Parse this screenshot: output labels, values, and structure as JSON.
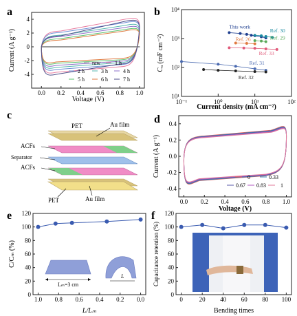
{
  "chart_data": [
    {
      "panel": "a",
      "type": "line",
      "xlabel": "Voltage (V)",
      "ylabel": "Current (A g⁻¹)",
      "xlim": [
        -0.1,
        1.05
      ],
      "ylim": [
        -6,
        5
      ],
      "xticks": [
        "0.0",
        "0.2",
        "0.4",
        "0.6",
        "0.8",
        "1.0"
      ],
      "yticks": [
        "-4",
        "-2",
        "0",
        "2",
        "4"
      ],
      "legend": {
        "placement": "bottom-right",
        "entries": [
          "raw",
          "1 h",
          "2 h",
          "3 h",
          "4 h",
          "5 h",
          "6 h",
          "7 h"
        ]
      },
      "series": [
        {
          "name": "raw",
          "color": "#999999",
          "upper": [
            0.05,
            0.05
          ],
          "lower": [
            -0.05,
            -0.05
          ]
        },
        {
          "name": "1 h",
          "color": "#e87ea1",
          "upper": [
            2.2,
            4.3
          ],
          "lower": [
            -2.8,
            -4.0
          ]
        },
        {
          "name": "2 h",
          "color": "#6f8fd6",
          "upper": [
            2.0,
            3.8
          ],
          "lower": [
            -2.5,
            -3.6
          ]
        },
        {
          "name": "3 h",
          "color": "#57b8b0",
          "upper": [
            1.6,
            3.4
          ],
          "lower": [
            -2.2,
            -3.3
          ]
        },
        {
          "name": "4 h",
          "color": "#8e6fc8",
          "upper": [
            1.4,
            3.1
          ],
          "lower": [
            -2.0,
            -3.0
          ]
        },
        {
          "name": "5 h",
          "color": "#5ac26e",
          "upper": [
            1.1,
            2.8
          ],
          "lower": [
            -1.8,
            -2.7
          ]
        },
        {
          "name": "6 h",
          "color": "#e07a40",
          "upper": [
            0.9,
            2.6
          ],
          "lower": [
            -1.6,
            -2.5
          ]
        },
        {
          "name": "7 h",
          "color": "#4e4e88",
          "upper": [
            1.5,
            4.0
          ],
          "lower": [
            -2.4,
            -4.3
          ]
        }
      ]
    },
    {
      "panel": "b",
      "type": "scatter",
      "xlabel": "Current density (mA cm⁻²)",
      "ylabel": "Cₐ (mF cm⁻²)",
      "xscale": "log",
      "yscale": "log",
      "xlim": [
        0.1,
        100
      ],
      "ylim": [
        10,
        10000
      ],
      "xticks": [
        "10⁻¹",
        "10⁰",
        "10¹",
        "10²"
      ],
      "yticks": [
        "10¹",
        "10²",
        "10³",
        "10⁴"
      ],
      "series": [
        {
          "name": "This work",
          "color": "#1f3f8f",
          "x": [
            2,
            4,
            6,
            8,
            10,
            15,
            20
          ],
          "y": [
            1600,
            1500,
            1400,
            1300,
            1250,
            1150,
            1050
          ]
        },
        {
          "name": "Ref. 30",
          "color": "#1a8aa0",
          "x": [
            10,
            15,
            20,
            30
          ],
          "y": [
            1300,
            1250,
            1180,
            1100
          ]
        },
        {
          "name": "Ref. 29",
          "color": "#5aa85a",
          "x": [
            10,
            15,
            20
          ],
          "y": [
            850,
            820,
            780
          ]
        },
        {
          "name": "Ref. 26",
          "color": "#e07a40",
          "x": [
            3,
            6,
            10
          ],
          "y": [
            700,
            680,
            660
          ]
        },
        {
          "name": "Ref. 33",
          "color": "#e05a7a",
          "x": [
            2,
            5,
            10,
            20,
            40
          ],
          "y": [
            480,
            470,
            460,
            440,
            420
          ]
        },
        {
          "name": "Ref. 31",
          "color": "#4a6ab0",
          "x": [
            0.1,
            1,
            3,
            10,
            20
          ],
          "y": [
            160,
            130,
            110,
            90,
            80
          ]
        },
        {
          "name": "Ref. 32",
          "color": "#222222",
          "x": [
            0.4,
            1,
            3,
            10,
            20
          ],
          "y": [
            85,
            80,
            76,
            72,
            70
          ]
        }
      ]
    },
    {
      "panel": "d",
      "type": "line",
      "xlabel": "Voltage (V)",
      "ylabel": "Current (A g⁻¹)",
      "xlim": [
        -0.05,
        1.05
      ],
      "ylim": [
        -0.5,
        0.5
      ],
      "xticks": [
        "0.0",
        "0.2",
        "0.4",
        "0.6",
        "0.8",
        "1.0"
      ],
      "yticks": [
        "-0.4",
        "-0.2",
        "0.0",
        "0.2",
        "0.4"
      ],
      "legend": {
        "placement": "bottom-right",
        "entries": [
          "0",
          "0.33",
          "0.67",
          "0.83",
          "1"
        ]
      },
      "series": [
        {
          "name": "0",
          "color": "#e05a5a"
        },
        {
          "name": "0.33",
          "color": "#2a7fb0"
        },
        {
          "name": "0.67",
          "color": "#5a5aaa"
        },
        {
          "name": "0.83",
          "color": "#b05ac0"
        },
        {
          "name": "1",
          "color": "#e07a9a"
        }
      ]
    },
    {
      "panel": "e",
      "type": "line",
      "xlabel": "L/Lₘ",
      "ylabel": "C/Cₘ (%)",
      "x_reversed": true,
      "xlim": [
        1.05,
        -0.05
      ],
      "ylim": [
        0,
        120
      ],
      "xticks": [
        "1.0",
        "0.8",
        "0.6",
        "0.4",
        "0.2",
        "0.0"
      ],
      "yticks": [
        "0",
        "20",
        "40",
        "60",
        "80",
        "100",
        "120"
      ],
      "x": [
        1.0,
        0.83,
        0.67,
        0.33,
        0.0
      ],
      "y": [
        100,
        105,
        106,
        108,
        111
      ],
      "color": "#3a5bb0",
      "annotations": {
        "flat_label": "Lₘ=3 cm",
        "bent_label": "L"
      }
    },
    {
      "panel": "f",
      "type": "line",
      "xlabel": "Bending times",
      "ylabel": "Capacitance retention (%)",
      "xlim": [
        -5,
        105
      ],
      "ylim": [
        0,
        120
      ],
      "xticks": [
        "0",
        "20",
        "40",
        "60",
        "80",
        "100"
      ],
      "yticks": [
        "0",
        "20",
        "40",
        "60",
        "80",
        "100",
        "120"
      ],
      "x": [
        0,
        20,
        40,
        60,
        80,
        100
      ],
      "y": [
        100,
        103,
        98,
        103,
        103,
        99
      ],
      "color": "#3a5bb0"
    }
  ],
  "panels": {
    "a": "a",
    "b": "b",
    "c": "c",
    "d": "d",
    "e": "e",
    "f": "f"
  },
  "diagram_c": {
    "layers": [
      "PET",
      "Au film",
      "ACFs",
      "Separator",
      "ACFs",
      "PET",
      "Au film"
    ]
  },
  "colors": {
    "pet_top": "#e7d7a4",
    "pet_bottom": "#f2df8a",
    "au_film": "#d8c27a",
    "acf": "#f08cc6",
    "separator": "#9fc0ea",
    "green_tab": "#7fcf8a",
    "marker_blue": "#3a5bb0",
    "axis": "#222222"
  }
}
